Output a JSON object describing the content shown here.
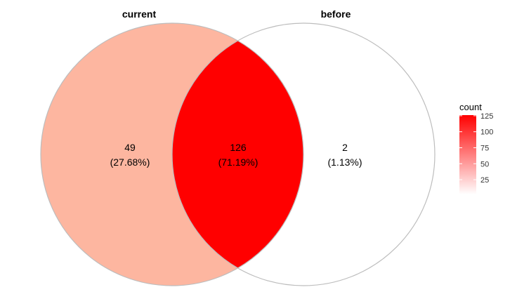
{
  "chart_data": {
    "type": "venn",
    "sets": [
      {
        "name": "current"
      },
      {
        "name": "before"
      }
    ],
    "regions": [
      {
        "sets": [
          "current"
        ],
        "count": 49,
        "percent": "(27.68%)",
        "color": "#fdb6a0"
      },
      {
        "sets": [
          "current",
          "before"
        ],
        "count": 126,
        "percent": "(71.19%)",
        "color": "#ff0000"
      },
      {
        "sets": [
          "before"
        ],
        "count": 2,
        "percent": "(1.13%)",
        "color": "#ffffff"
      }
    ],
    "legend": {
      "title": "count",
      "ticks": [
        25,
        50,
        75,
        100,
        125
      ],
      "range": [
        2,
        126
      ],
      "color_low": "#ffffff",
      "color_high": "#ff0000",
      "placement": "right"
    },
    "outline_color": "#bdbdbd"
  }
}
